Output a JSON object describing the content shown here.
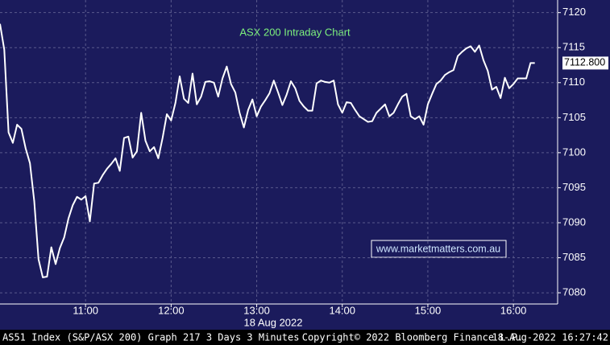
{
  "chart_data": {
    "type": "line",
    "title": "ASX 200 Intraday Chart",
    "x_axis_label": "18 Aug 2022",
    "watermark": "www.marketmatters.com.au",
    "footer_left": "AS51 Index (S&P/ASX 200) Graph 217 3 Days 3 Minutes",
    "footer_center": "Copyright© 2022 Bloomberg Finance L.P.",
    "footer_right": "18-Aug-2022 16:27:42",
    "color": "#ffffff",
    "grid": true,
    "x": [
      600,
      603,
      606,
      609,
      612,
      615,
      618,
      621,
      624,
      627,
      630,
      633,
      636,
      639,
      642,
      645,
      648,
      651,
      654,
      657,
      660,
      663,
      666,
      669,
      672,
      675,
      678,
      681,
      684,
      687,
      690,
      693,
      696,
      699,
      702,
      705,
      708,
      711,
      714,
      717,
      720,
      723,
      726,
      729,
      732,
      735,
      738,
      741,
      744,
      747,
      750,
      753,
      756,
      759,
      762,
      765,
      768,
      771,
      774,
      777,
      780,
      783,
      786,
      789,
      792,
      795,
      798,
      801,
      804,
      807,
      810,
      813,
      816,
      819,
      822,
      825,
      828,
      831,
      834,
      837,
      840,
      843,
      846,
      849,
      852,
      855,
      858,
      861,
      864,
      867,
      870,
      873,
      876,
      879,
      882,
      885,
      888,
      891,
      894,
      897,
      900,
      903,
      906,
      909,
      912,
      915,
      918,
      921,
      924,
      927,
      930,
      933,
      936,
      939,
      942,
      945,
      948,
      951,
      954,
      957,
      960,
      963,
      966,
      969,
      972,
      975
    ],
    "values": [
      7118.4,
      7114.7,
      7102.9,
      7101.4,
      7104.0,
      7103.4,
      7100.6,
      7098.5,
      7093.1,
      7084.8,
      7082.2,
      7082.3,
      7086.5,
      7084.1,
      7086.4,
      7087.9,
      7090.6,
      7092.5,
      7093.7,
      7093.3,
      7093.8,
      7090.2,
      7095.6,
      7095.7,
      7096.8,
      7097.7,
      7098.4,
      7099.2,
      7097.4,
      7102.1,
      7102.3,
      7099.3,
      7100.2,
      7105.7,
      7101.7,
      7100.2,
      7100.8,
      7099.2,
      7102.1,
      7105.5,
      7104.6,
      7107.1,
      7110.9,
      7107.7,
      7107.1,
      7111.3,
      7106.9,
      7108.0,
      7110.1,
      7110.2,
      7110.0,
      7108.0,
      7110.6,
      7112.3,
      7109.8,
      7108.6,
      7105.7,
      7103.6,
      7106.1,
      7107.6,
      7105.2,
      7106.6,
      7107.5,
      7108.5,
      7110.3,
      7108.6,
      7106.8,
      7108.3,
      7110.2,
      7109.2,
      7107.4,
      7106.6,
      7106.0,
      7106.0,
      7109.9,
      7110.3,
      7110.1,
      7110.0,
      7110.3,
      7106.9,
      7105.7,
      7107.2,
      7107.1,
      7106.1,
      7105.2,
      7104.8,
      7104.4,
      7104.5,
      7105.7,
      7106.3,
      7106.9,
      7105.2,
      7105.7,
      7106.9,
      7108.0,
      7108.4,
      7105.2,
      7104.8,
      7105.2,
      7104.0,
      7106.9,
      7108.4,
      7109.8,
      7110.3,
      7111.1,
      7111.5,
      7111.8,
      7113.8,
      7114.4,
      7114.9,
      7115.2,
      7114.4,
      7115.3,
      7113.2,
      7111.7,
      7109.0,
      7109.4,
      7107.8,
      7110.7,
      7109.2,
      7109.8,
      7110.6,
      7110.6,
      7110.6,
      7112.8,
      7112.8
    ],
    "last_price": {
      "value": 7112.8,
      "label": "7112.800"
    },
    "xlim": [
      600,
      991
    ],
    "xticks": [
      {
        "value": 660,
        "label": "11:00"
      },
      {
        "value": 720,
        "label": "12:00"
      },
      {
        "value": 780,
        "label": "13:00"
      },
      {
        "value": 840,
        "label": "14:00"
      },
      {
        "value": 900,
        "label": "15:00"
      },
      {
        "value": 960,
        "label": "16:00"
      }
    ],
    "ylim": [
      7078.4,
      7121.8
    ],
    "yticks": [
      7080,
      7085,
      7090,
      7095,
      7100,
      7105,
      7110,
      7115,
      7120
    ]
  }
}
